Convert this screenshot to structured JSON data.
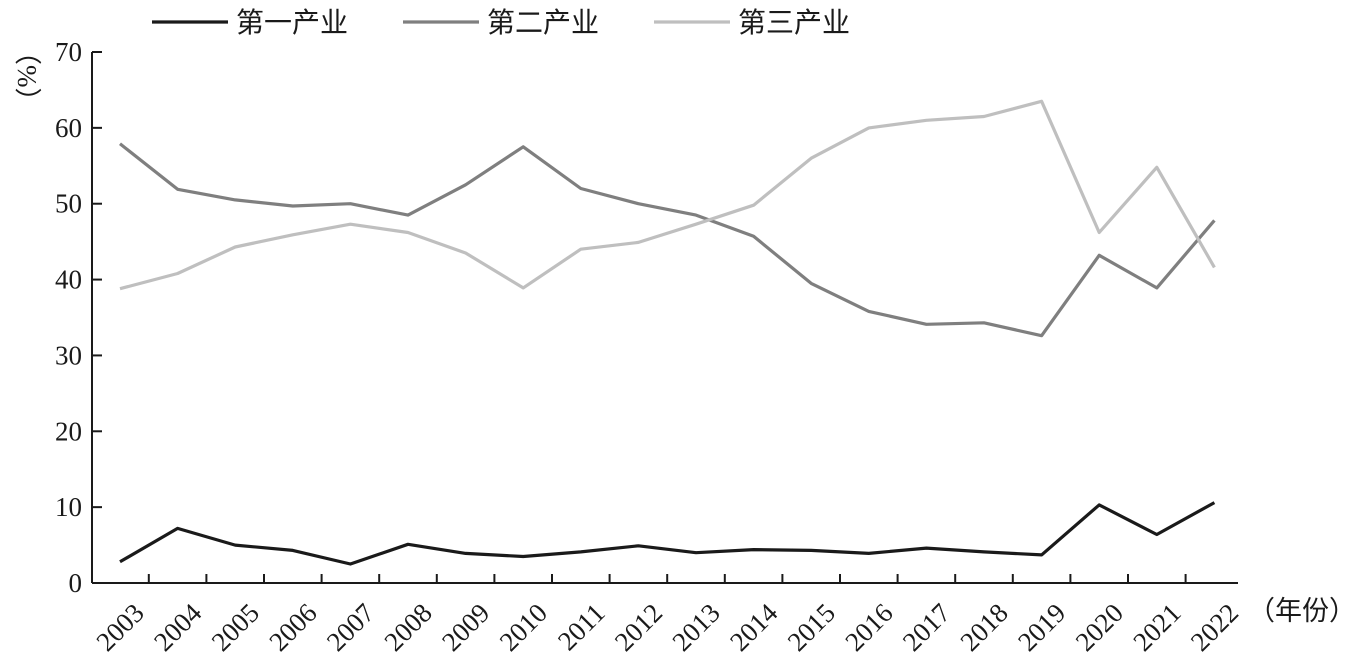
{
  "chart_data": {
    "type": "line",
    "title": "",
    "xlabel": "（年份）",
    "ylabel": "（%）",
    "ylim": [
      0,
      70
    ],
    "yticks": [
      0,
      10,
      20,
      30,
      40,
      50,
      60,
      70
    ],
    "grid": false,
    "legend_position": "top-left",
    "categories": [
      "2003",
      "2004",
      "2005",
      "2006",
      "2007",
      "2008",
      "2009",
      "2010",
      "2011",
      "2012",
      "2013",
      "2014",
      "2015",
      "2016",
      "2017",
      "2018",
      "2019",
      "2020",
      "2021",
      "2022"
    ],
    "series": [
      {
        "name": "第一产业",
        "color": "#1a1a1a",
        "values": [
          2.8,
          7.2,
          5.0,
          4.3,
          2.5,
          5.1,
          3.9,
          3.5,
          4.1,
          4.9,
          4.0,
          4.4,
          4.3,
          3.9,
          4.6,
          4.1,
          3.7,
          10.3,
          6.4,
          10.6
        ]
      },
      {
        "name": "第二产业",
        "color": "#7f7f7f",
        "values": [
          57.9,
          51.9,
          50.5,
          49.7,
          50.0,
          48.5,
          52.5,
          57.5,
          52.0,
          50.0,
          48.5,
          45.7,
          39.5,
          35.8,
          34.1,
          34.3,
          32.6,
          43.2,
          38.9,
          47.8
        ]
      },
      {
        "name": "第三产业",
        "color": "#bfbfbf",
        "values": [
          38.8,
          40.8,
          44.3,
          45.9,
          47.3,
          46.2,
          43.5,
          38.9,
          44.0,
          44.9,
          47.3,
          49.8,
          56.0,
          60.0,
          61.0,
          61.5,
          63.5,
          46.2,
          54.8,
          41.6
        ]
      }
    ]
  }
}
